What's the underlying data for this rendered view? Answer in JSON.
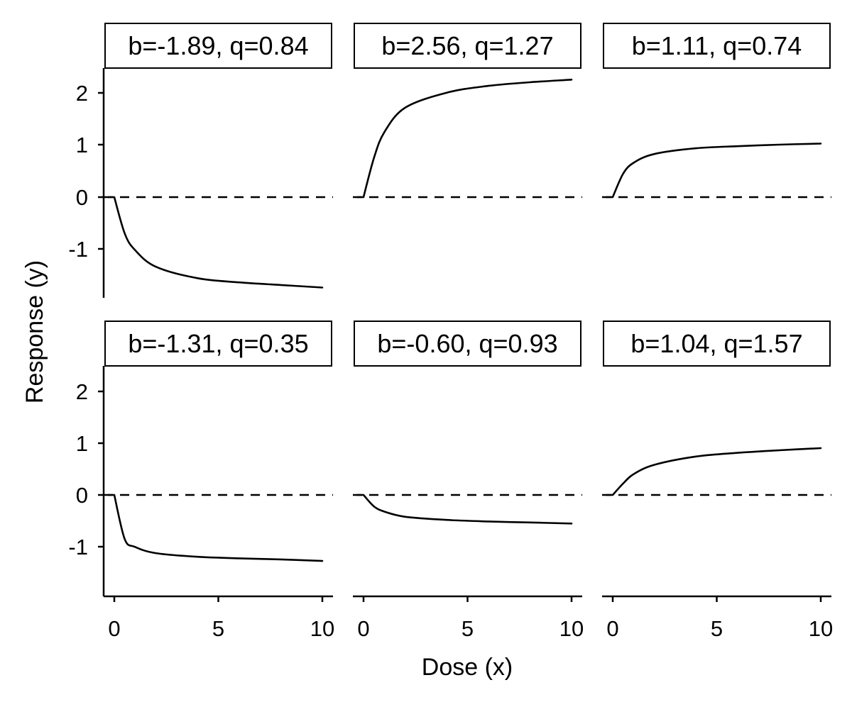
{
  "chart_data": {
    "type": "line",
    "title": "",
    "xlabel": "Dose (x)",
    "ylabel": "Response (y)",
    "xlim": [
      -0.5,
      10.5
    ],
    "ylim": [
      -1.9,
      2.5
    ],
    "xticks": [
      0,
      5,
      10
    ],
    "yticks": [
      -1,
      0,
      1,
      2
    ],
    "xtick_labels": [
      "0",
      "5",
      "10"
    ],
    "ytick_labels": [
      "-1",
      "0",
      "1",
      "2"
    ],
    "reference_line": {
      "y": 0,
      "style": "dashed"
    },
    "grid": false,
    "layout": {
      "rows": 2,
      "cols": 3
    },
    "panels": [
      {
        "label": "b=-1.89, q=0.84",
        "b": -1.89,
        "q": 0.84
      },
      {
        "label": "b=2.56, q=1.27",
        "b": 2.56,
        "q": 1.27
      },
      {
        "label": "b=1.11, q=0.74",
        "b": 1.11,
        "q": 0.74
      },
      {
        "label": "b=-1.31, q=0.35",
        "b": -1.31,
        "q": 0.35
      },
      {
        "label": "b=-0.60, q=0.93",
        "b": -0.6,
        "q": 0.93
      },
      {
        "label": "b=1.04, q=1.57",
        "b": 1.04,
        "q": 1.57
      }
    ],
    "series": [
      {
        "name": "b=-1.89, q=0.84",
        "x": [
          0,
          0.5,
          1,
          2,
          4,
          6,
          8,
          10
        ],
        "y": [
          0,
          -0.7,
          -1.02,
          -1.34,
          -1.56,
          -1.64,
          -1.69,
          -1.74
        ]
      },
      {
        "name": "b=2.56, q=1.27",
        "x": [
          0,
          0.5,
          1,
          2,
          4,
          6,
          8,
          10
        ],
        "y": [
          0,
          0.75,
          1.25,
          1.72,
          2.01,
          2.14,
          2.21,
          2.26
        ]
      },
      {
        "name": "b=1.11, q=0.74",
        "x": [
          0,
          0.5,
          1,
          2,
          4,
          6,
          8,
          10
        ],
        "y": [
          0,
          0.45,
          0.66,
          0.83,
          0.94,
          0.98,
          1.01,
          1.03
        ]
      },
      {
        "name": "b=-1.31, q=0.35",
        "x": [
          0,
          0.5,
          1,
          2,
          4,
          6,
          8,
          10
        ],
        "y": [
          0,
          -0.85,
          -1.0,
          -1.12,
          -1.19,
          -1.22,
          -1.24,
          -1.27
        ]
      },
      {
        "name": "b=-0.60, q=0.93",
        "x": [
          0,
          0.5,
          1,
          2,
          4,
          6,
          8,
          10
        ],
        "y": [
          0,
          -0.22,
          -0.32,
          -0.42,
          -0.48,
          -0.51,
          -0.53,
          -0.55
        ]
      },
      {
        "name": "b=1.04, q=1.57",
        "x": [
          0,
          0.5,
          1,
          2,
          4,
          6,
          8,
          10
        ],
        "y": [
          0,
          0.22,
          0.4,
          0.58,
          0.74,
          0.81,
          0.86,
          0.9
        ]
      }
    ]
  }
}
